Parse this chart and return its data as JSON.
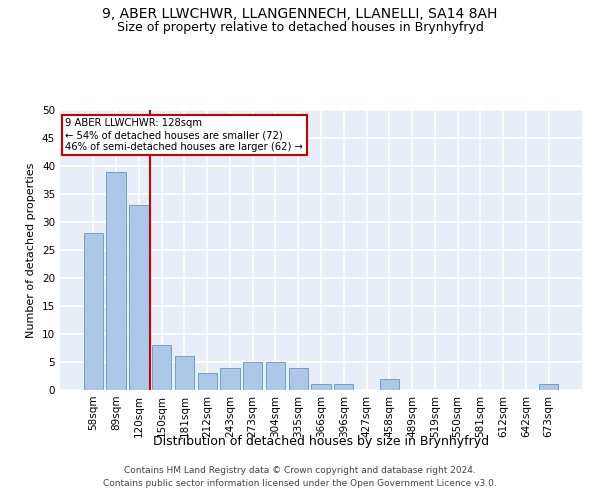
{
  "title": "9, ABER LLWCHWR, LLANGENNECH, LLANELLI, SA14 8AH",
  "subtitle": "Size of property relative to detached houses in Brynhyfryd",
  "xlabel": "Distribution of detached houses by size in Brynhyfryd",
  "ylabel": "Number of detached properties",
  "categories": [
    "58sqm",
    "89sqm",
    "120sqm",
    "150sqm",
    "181sqm",
    "212sqm",
    "243sqm",
    "273sqm",
    "304sqm",
    "335sqm",
    "366sqm",
    "396sqm",
    "427sqm",
    "458sqm",
    "489sqm",
    "519sqm",
    "550sqm",
    "581sqm",
    "612sqm",
    "642sqm",
    "673sqm"
  ],
  "values": [
    28,
    39,
    33,
    8,
    6,
    3,
    4,
    5,
    5,
    4,
    1,
    1,
    0,
    2,
    0,
    0,
    0,
    0,
    0,
    0,
    1
  ],
  "bar_color": "#aec6e8",
  "bar_edge_color": "#5a9ac8",
  "ylim": [
    0,
    50
  ],
  "yticks": [
    0,
    5,
    10,
    15,
    20,
    25,
    30,
    35,
    40,
    45,
    50
  ],
  "annotation_box_text": "9 ABER LLWCHWR: 128sqm\n← 54% of detached houses are smaller (72)\n46% of semi-detached houses are larger (62) →",
  "annotation_box_color": "#cc0000",
  "vline_x_index": 2,
  "vline_color": "#cc0000",
  "background_color": "#e8eef8",
  "grid_color": "#ffffff",
  "footer": "Contains HM Land Registry data © Crown copyright and database right 2024.\nContains public sector information licensed under the Open Government Licence v3.0.",
  "title_fontsize": 10,
  "subtitle_fontsize": 9,
  "xlabel_fontsize": 9,
  "ylabel_fontsize": 8,
  "tick_fontsize": 7.5,
  "footer_fontsize": 6.5
}
